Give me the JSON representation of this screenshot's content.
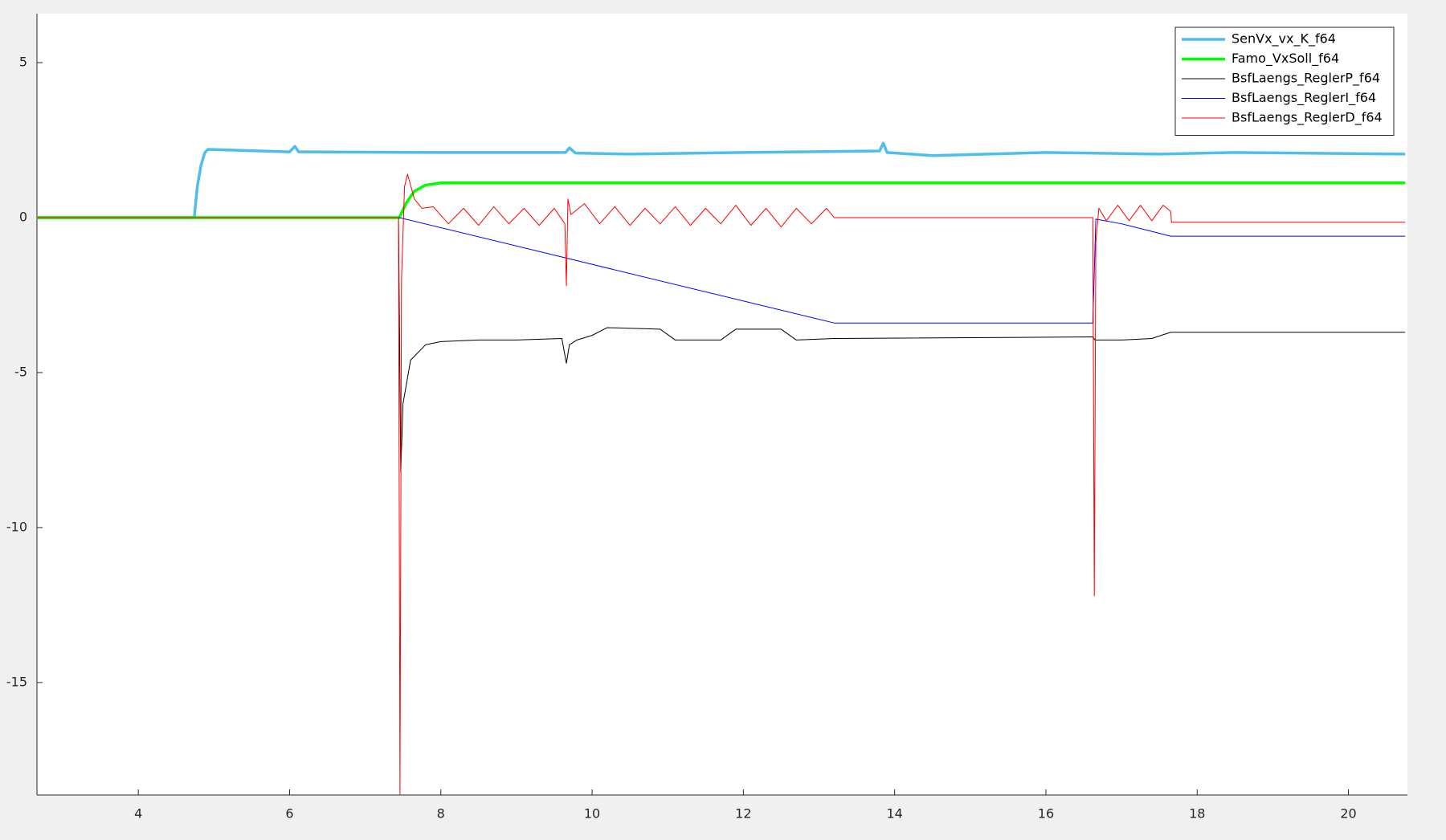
{
  "chart_data": {
    "type": "line",
    "xlim": [
      2.66,
      20.78
    ],
    "ylim": [
      -18.63,
      6.58
    ],
    "xticks": [
      4,
      6,
      8,
      10,
      12,
      14,
      16,
      18,
      20
    ],
    "yticks": [
      -15,
      -10,
      -5,
      0,
      5
    ],
    "legend": "northeast",
    "series": [
      {
        "name": "SenVx_vx_K_f64",
        "color": "#4dbeee",
        "width": 3.5,
        "x": [
          2.66,
          4.74,
          4.78,
          4.83,
          4.88,
          4.92,
          6.0,
          6.07,
          6.12,
          8,
          9.65,
          9.7,
          9.78,
          10.5,
          12,
          13.8,
          13.85,
          13.9,
          14.5,
          16,
          17.5,
          18.5,
          20.75
        ],
        "values": [
          0,
          0,
          1.0,
          1.7,
          2.1,
          2.2,
          2.12,
          2.3,
          2.12,
          2.1,
          2.1,
          2.25,
          2.08,
          2.05,
          2.1,
          2.15,
          2.4,
          2.1,
          2.0,
          2.1,
          2.05,
          2.1,
          2.05
        ]
      },
      {
        "name": "Famo_VxSoll_f64",
        "color": "#00ff00",
        "width": 3.5,
        "x": [
          2.66,
          7.45,
          7.55,
          7.65,
          7.8,
          8.0,
          20.75
        ],
        "values": [
          0,
          0,
          0.5,
          0.85,
          1.05,
          1.12,
          1.12
        ]
      },
      {
        "name": "BsfLaengs_ReglerP_f64",
        "color": "#000000",
        "width": 1,
        "x": [
          2.66,
          7.44,
          7.47,
          7.5,
          7.6,
          7.8,
          8.0,
          8.5,
          9.0,
          9.6,
          9.66,
          9.7,
          9.8,
          10.0,
          10.2,
          10.9,
          11.1,
          11.7,
          11.9,
          12.5,
          12.7,
          13.2,
          16.62,
          16.65,
          17.0,
          17.4,
          17.65,
          20.75
        ],
        "values": [
          0,
          0,
          -8.2,
          -6,
          -4.6,
          -4.1,
          -4.0,
          -3.95,
          -3.95,
          -3.9,
          -4.7,
          -4.1,
          -3.95,
          -3.8,
          -3.55,
          -3.6,
          -3.95,
          -3.95,
          -3.6,
          -3.6,
          -3.95,
          -3.9,
          -3.85,
          -3.95,
          -3.95,
          -3.9,
          -3.7,
          -3.7
        ]
      },
      {
        "name": "BsfLaengs_ReglerI_f64",
        "color": "#0000ff",
        "width": 1,
        "x": [
          2.66,
          7.45,
          13.2,
          16.62,
          16.66,
          17.0,
          17.65,
          20.75
        ],
        "values": [
          0,
          0,
          -3.4,
          -3.4,
          -0.05,
          -0.2,
          -0.6,
          -0.6
        ]
      },
      {
        "name": "BsfLaengs_ReglerD_f64",
        "color": "#ff0000",
        "width": 1,
        "x": [
          2.66,
          7.44,
          7.46,
          7.48,
          7.52,
          7.56,
          7.65,
          7.75,
          7.9,
          8.1,
          8.3,
          8.5,
          8.7,
          8.9,
          9.1,
          9.3,
          9.5,
          9.64,
          9.66,
          9.68,
          9.72,
          9.9,
          10.1,
          10.3,
          10.5,
          10.7,
          10.9,
          11.1,
          11.3,
          11.5,
          11.7,
          11.9,
          12.1,
          12.3,
          12.5,
          12.7,
          12.9,
          13.1,
          13.2,
          16.62,
          16.64,
          16.66,
          16.7,
          16.8,
          16.95,
          17.1,
          17.25,
          17.4,
          17.55,
          17.65,
          17.66,
          20.75
        ],
        "values": [
          0,
          0,
          -18.6,
          -2,
          1.0,
          1.4,
          0.6,
          0.3,
          0.35,
          -0.2,
          0.3,
          -0.25,
          0.35,
          -0.2,
          0.3,
          -0.25,
          0.3,
          -0.2,
          -2.2,
          0.6,
          0.1,
          0.45,
          -0.2,
          0.35,
          -0.25,
          0.3,
          -0.2,
          0.35,
          -0.25,
          0.3,
          -0.2,
          0.4,
          -0.25,
          0.3,
          -0.3,
          0.3,
          -0.2,
          0.3,
          0,
          0,
          -12.2,
          -0.8,
          0.3,
          -0.1,
          0.4,
          -0.1,
          0.4,
          -0.1,
          0.4,
          0.2,
          -0.15,
          -0.15
        ]
      }
    ]
  }
}
